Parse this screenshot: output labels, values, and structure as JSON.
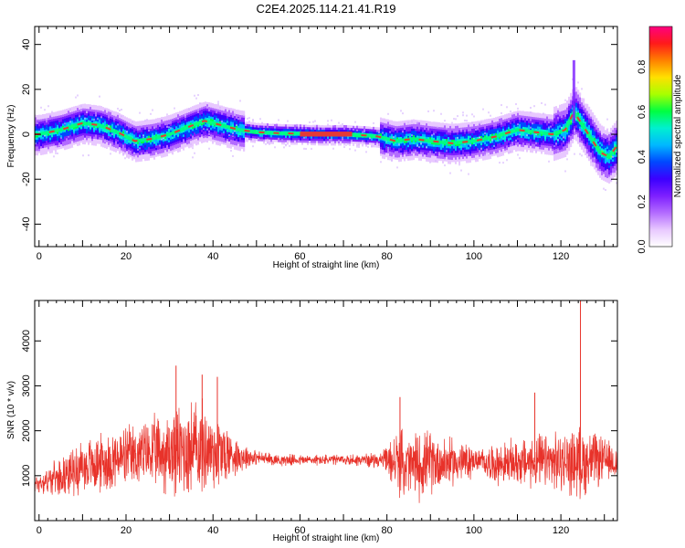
{
  "title": "C2E4.2025.114.21.41.R19",
  "colors": {
    "snr_line": "#e8322a",
    "ridge_core": "#e53935",
    "colormap": [
      "#ffffff",
      "#e8c8ff",
      "#b36bff",
      "#7d1fff",
      "#3b00ff",
      "#0048ff",
      "#00b8ff",
      "#00f0d0",
      "#00ff40",
      "#a8ff00",
      "#ffe000",
      "#ff8000",
      "#ff1a1a",
      "#ff0080"
    ]
  },
  "chart_data": [
    {
      "type": "heatmap",
      "xlabel": "Height of straight line (km)",
      "ylabel": "Frequency (Hz)",
      "xlim": [
        -1,
        133
      ],
      "ylim": [
        -50,
        48
      ],
      "xticks": [
        "0",
        "20",
        "40",
        "60",
        "80",
        "100",
        "120"
      ],
      "yticks": [
        "-40",
        "-20",
        "0",
        "20",
        "40"
      ],
      "colorbar": {
        "label": "Normalized spectral amplitude",
        "range": [
          0.0,
          0.98
        ],
        "ticks": [
          "0.0",
          "0.2",
          "0.4",
          "0.6",
          "0.8"
        ]
      },
      "ridge": {
        "x": [
          0,
          5,
          10,
          14,
          18,
          22,
          26,
          30,
          34,
          38,
          42,
          46,
          50,
          55,
          60,
          65,
          70,
          75,
          78,
          82,
          86,
          90,
          95,
          100,
          105,
          110,
          114,
          118,
          121,
          123,
          125,
          127,
          129,
          131,
          133
        ],
        "y": [
          0,
          2,
          5,
          4,
          1,
          -3,
          -2,
          0,
          3,
          6,
          4,
          2,
          1,
          0.5,
          0.3,
          0,
          0,
          -0.5,
          -1,
          -3,
          -2,
          -3,
          -4,
          -3,
          -1,
          2,
          1,
          0,
          2,
          10,
          4,
          -2,
          -8,
          -10,
          -5
        ]
      }
    },
    {
      "type": "line",
      "xlabel": "Height of straight line (km)",
      "ylabel": "SNR (10 * v/v)",
      "xlim": [
        -1,
        133
      ],
      "ylim": [
        0,
        4900
      ],
      "xticks": [
        "0",
        "20",
        "40",
        "60",
        "80",
        "100",
        "120"
      ],
      "yticks": [
        "1000",
        "2000",
        "3000",
        "4000"
      ],
      "series": [
        {
          "envelope_x": [
            -1,
            5,
            10,
            15,
            20,
            25,
            30,
            34,
            38,
            42,
            45,
            50,
            55,
            60,
            65,
            70,
            75,
            79,
            82,
            86,
            90,
            95,
            99,
            100,
            105,
            110,
            115,
            120,
            124,
            125,
            128,
            133
          ],
          "envelope_mean": [
            800,
            1000,
            1200,
            1300,
            1400,
            1500,
            1500,
            1600,
            1600,
            1500,
            1450,
            1400,
            1350,
            1350,
            1350,
            1350,
            1350,
            1350,
            1300,
            1200,
            1300,
            1300,
            1300,
            1350,
            1250,
            1300,
            1300,
            1300,
            1300,
            1300,
            1350,
            1300
          ],
          "envelope_halfwidth": [
            250,
            450,
            700,
            750,
            800,
            850,
            1100,
            1300,
            1200,
            1000,
            500,
            180,
            150,
            140,
            140,
            140,
            170,
            200,
            800,
            900,
            800,
            600,
            500,
            250,
            500,
            600,
            700,
            750,
            900,
            900,
            700,
            400
          ],
          "spikes": [
            {
              "x": 31.5,
              "y": 3450
            },
            {
              "x": 37.5,
              "y": 3250
            },
            {
              "x": 41.0,
              "y": 3200
            },
            {
              "x": 83.0,
              "y": 2750
            },
            {
              "x": 114.0,
              "y": 2850
            },
            {
              "x": 124.5,
              "y": 4900
            }
          ]
        }
      ]
    }
  ]
}
